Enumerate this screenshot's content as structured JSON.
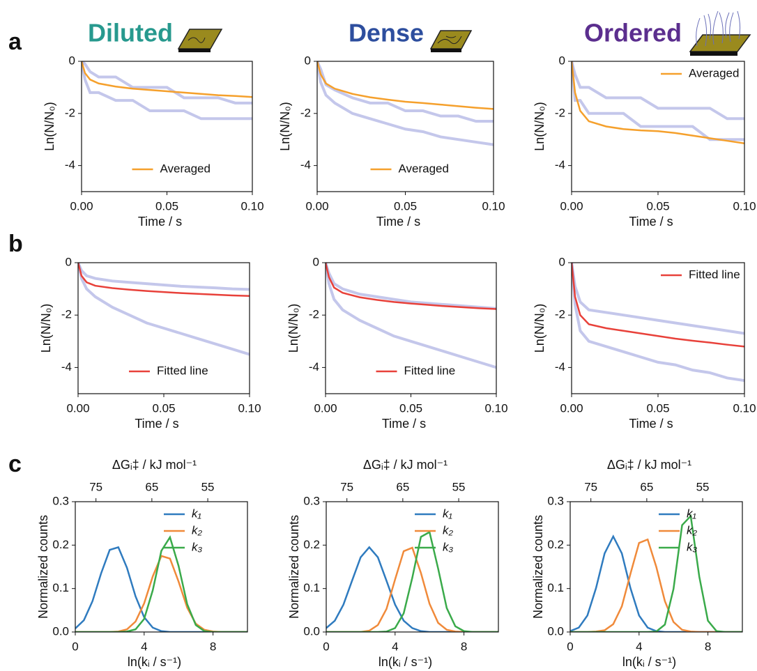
{
  "panel_labels": [
    "a",
    "b",
    "c"
  ],
  "column_titles": [
    "Diluted",
    "Dense",
    "Ordered"
  ],
  "column_title_colors": [
    "#27998e",
    "#2d4e9e",
    "#5b2e8e"
  ],
  "chart_data": [
    {
      "type": "line",
      "xlabel": "Time / s",
      "ylabel": "Ln(N/N₀)",
      "xlim": [
        0,
        0.1
      ],
      "ylim": [
        -5,
        0
      ],
      "xticks": [
        {
          "value": 0,
          "label": "0.00"
        },
        {
          "value": 0.05,
          "label": "0.05"
        },
        {
          "value": 0.1,
          "label": "0.10"
        }
      ],
      "yticks": [
        0,
        -2,
        -4
      ],
      "legend": "lower center",
      "x": [
        0,
        0.002,
        0.005,
        0.01,
        0.02,
        0.03,
        0.04,
        0.05,
        0.06,
        0.07,
        0.08,
        0.09,
        0.1
      ],
      "series": [
        {
          "color": "rgba(60,70,190,0.3)",
          "values": [
            0,
            -0.1,
            -0.4,
            -0.6,
            -0.6,
            -1.0,
            -1.0,
            -1.0,
            -1.4,
            -1.4,
            -1.4,
            -1.6,
            -1.6
          ]
        },
        {
          "color": "rgba(60,70,190,0.3)",
          "values": [
            0,
            -0.7,
            -1.2,
            -1.2,
            -1.5,
            -1.5,
            -1.9,
            -1.9,
            -1.9,
            -2.2,
            -2.2,
            -2.2,
            -2.2
          ]
        },
        {
          "name": "Averaged",
          "color": "#f5a02c",
          "values": [
            0,
            -0.45,
            -0.7,
            -0.85,
            -0.97,
            -1.05,
            -1.1,
            -1.15,
            -1.2,
            -1.25,
            -1.3,
            -1.33,
            -1.37
          ]
        }
      ]
    },
    {
      "type": "line",
      "xlabel": "Time / s",
      "ylabel": "Ln(N/N₀)",
      "xlim": [
        0,
        0.1
      ],
      "ylim": [
        -5,
        0
      ],
      "xticks": [
        {
          "value": 0,
          "label": "0.00"
        },
        {
          "value": 0.05,
          "label": "0.05"
        },
        {
          "value": 0.1,
          "label": "0.10"
        }
      ],
      "yticks": [
        0,
        -2,
        -4
      ],
      "legend": "lower center",
      "x": [
        0,
        0.002,
        0.005,
        0.01,
        0.02,
        0.03,
        0.04,
        0.05,
        0.06,
        0.07,
        0.08,
        0.09,
        0.1
      ],
      "series": [
        {
          "color": "rgba(60,70,190,0.3)",
          "values": [
            0,
            -0.3,
            -0.9,
            -1.1,
            -1.4,
            -1.6,
            -1.6,
            -1.9,
            -1.9,
            -2.1,
            -2.1,
            -2.3,
            -2.3
          ]
        },
        {
          "color": "rgba(60,70,190,0.3)",
          "values": [
            0,
            -0.8,
            -1.3,
            -1.6,
            -2.0,
            -2.2,
            -2.4,
            -2.6,
            -2.7,
            -2.9,
            -3.0,
            -3.1,
            -3.2
          ]
        },
        {
          "name": "Averaged",
          "color": "#f5a02c",
          "values": [
            0,
            -0.5,
            -0.85,
            -1.05,
            -1.25,
            -1.38,
            -1.47,
            -1.55,
            -1.6,
            -1.66,
            -1.72,
            -1.78,
            -1.83
          ]
        }
      ]
    },
    {
      "type": "line",
      "xlabel": "Time / s",
      "ylabel": "Ln(N/N₀)",
      "xlim": [
        0,
        0.1
      ],
      "ylim": [
        -5,
        0
      ],
      "xticks": [
        {
          "value": 0,
          "label": "0.00"
        },
        {
          "value": 0.05,
          "label": "0.05"
        },
        {
          "value": 0.1,
          "label": "0.10"
        }
      ],
      "yticks": [
        0,
        -2,
        -4
      ],
      "legend": "upper right",
      "x": [
        0,
        0.002,
        0.005,
        0.01,
        0.02,
        0.03,
        0.04,
        0.05,
        0.06,
        0.07,
        0.08,
        0.09,
        0.1
      ],
      "series": [
        {
          "color": "rgba(60,70,190,0.3)",
          "values": [
            0,
            -1.5,
            -1.5,
            -2.0,
            -2.0,
            -2.0,
            -2.5,
            -2.5,
            -2.5,
            -2.5,
            -3.0,
            -3.0,
            -3.0
          ]
        },
        {
          "color": "rgba(60,70,190,0.3)",
          "values": [
            0,
            -0.5,
            -1.0,
            -1.0,
            -1.4,
            -1.4,
            -1.4,
            -1.8,
            -1.8,
            -1.8,
            -1.8,
            -2.2,
            -2.2
          ]
        },
        {
          "name": "Averaged",
          "color": "#f5a02c",
          "values": [
            0,
            -1.2,
            -1.9,
            -2.3,
            -2.5,
            -2.6,
            -2.65,
            -2.68,
            -2.75,
            -2.85,
            -2.95,
            -3.05,
            -3.15
          ]
        }
      ]
    },
    {
      "type": "line",
      "xlabel": "Time / s",
      "ylabel": "Ln(N/N₀)",
      "xlim": [
        0,
        0.1
      ],
      "ylim": [
        -5,
        0
      ],
      "xticks": [
        {
          "value": 0,
          "label": "0.00"
        },
        {
          "value": 0.05,
          "label": "0.05"
        },
        {
          "value": 0.1,
          "label": "0.10"
        }
      ],
      "yticks": [
        0,
        -2,
        -4
      ],
      "legend": "lower center",
      "x": [
        0,
        0.002,
        0.005,
        0.01,
        0.02,
        0.03,
        0.04,
        0.05,
        0.06,
        0.07,
        0.08,
        0.09,
        0.1
      ],
      "series": [
        {
          "color": "rgba(60,70,190,0.3)",
          "values": [
            0,
            -0.3,
            -0.5,
            -0.6,
            -0.7,
            -0.75,
            -0.8,
            -0.85,
            -0.9,
            -0.93,
            -0.96,
            -1.0,
            -1.02
          ]
        },
        {
          "color": "rgba(60,70,190,0.3)",
          "values": [
            0,
            -0.6,
            -1.0,
            -1.3,
            -1.7,
            -2.0,
            -2.3,
            -2.5,
            -2.7,
            -2.9,
            -3.1,
            -3.3,
            -3.5
          ]
        },
        {
          "name": "Fitted line",
          "color": "#e8413a",
          "values": [
            0,
            -0.5,
            -0.75,
            -0.88,
            -0.97,
            -1.03,
            -1.08,
            -1.12,
            -1.16,
            -1.19,
            -1.22,
            -1.25,
            -1.27
          ]
        }
      ]
    },
    {
      "type": "line",
      "xlabel": "Time / s",
      "ylabel": "Ln(N/N₀)",
      "xlim": [
        0,
        0.1
      ],
      "ylim": [
        -5,
        0
      ],
      "xticks": [
        {
          "value": 0,
          "label": "0.00"
        },
        {
          "value": 0.05,
          "label": "0.05"
        },
        {
          "value": 0.1,
          "label": "0.10"
        }
      ],
      "yticks": [
        0,
        -2,
        -4
      ],
      "legend": "lower center",
      "x": [
        0,
        0.002,
        0.005,
        0.01,
        0.02,
        0.03,
        0.04,
        0.05,
        0.06,
        0.07,
        0.08,
        0.09,
        0.1
      ],
      "series": [
        {
          "color": "rgba(60,70,190,0.3)",
          "values": [
            0,
            -0.4,
            -0.8,
            -1.0,
            -1.2,
            -1.3,
            -1.4,
            -1.5,
            -1.55,
            -1.6,
            -1.65,
            -1.7,
            -1.75
          ]
        },
        {
          "color": "rgba(60,70,190,0.3)",
          "values": [
            0,
            -0.8,
            -1.4,
            -1.8,
            -2.2,
            -2.5,
            -2.8,
            -3.0,
            -3.2,
            -3.4,
            -3.6,
            -3.8,
            -4.0
          ]
        },
        {
          "name": "Fitted line",
          "color": "#e8413a",
          "values": [
            0,
            -0.55,
            -0.95,
            -1.15,
            -1.32,
            -1.42,
            -1.5,
            -1.56,
            -1.61,
            -1.66,
            -1.7,
            -1.74,
            -1.77
          ]
        }
      ]
    },
    {
      "type": "line",
      "xlabel": "Time / s",
      "ylabel": "Ln(N/N₀)",
      "xlim": [
        0,
        0.1
      ],
      "ylim": [
        -5,
        0
      ],
      "xticks": [
        {
          "value": 0,
          "label": "0.00"
        },
        {
          "value": 0.05,
          "label": "0.05"
        },
        {
          "value": 0.1,
          "label": "0.10"
        }
      ],
      "yticks": [
        0,
        -2,
        -4
      ],
      "legend": "upper right",
      "x": [
        0,
        0.002,
        0.005,
        0.01,
        0.02,
        0.03,
        0.04,
        0.05,
        0.06,
        0.07,
        0.08,
        0.09,
        0.1
      ],
      "series": [
        {
          "color": "rgba(60,70,190,0.3)",
          "values": [
            0,
            -0.9,
            -1.5,
            -1.8,
            -1.9,
            -2.0,
            -2.1,
            -2.2,
            -2.3,
            -2.4,
            -2.5,
            -2.6,
            -2.7
          ]
        },
        {
          "color": "rgba(60,70,190,0.3)",
          "values": [
            0,
            -1.6,
            -2.6,
            -3.0,
            -3.2,
            -3.4,
            -3.6,
            -3.8,
            -3.9,
            -4.1,
            -4.2,
            -4.4,
            -4.5
          ]
        },
        {
          "name": "Fitted line",
          "color": "#e8413a",
          "values": [
            0,
            -1.3,
            -2.0,
            -2.35,
            -2.5,
            -2.6,
            -2.7,
            -2.8,
            -2.9,
            -2.98,
            -3.05,
            -3.13,
            -3.2
          ]
        }
      ]
    },
    {
      "type": "line",
      "xlabel": "ln(kᵢ / s⁻¹)",
      "ylabel": "Normalized counts",
      "x2label": "ΔGᵢ‡ / kJ mol⁻¹",
      "xlim": [
        0,
        10
      ],
      "ylim": [
        0,
        0.3
      ],
      "x2lim": [
        78.7,
        47.9
      ],
      "xticks": [
        0,
        4,
        8
      ],
      "x2ticks": [
        75,
        65,
        55
      ],
      "yticks": [
        {
          "value": 0,
          "label": "0.0"
        },
        0.1,
        0.2,
        0.3
      ],
      "legend": "upper right",
      "x": [
        0,
        0.5,
        1,
        1.5,
        2,
        2.5,
        3,
        3.5,
        4,
        4.5,
        5,
        5.5,
        6,
        6.5,
        7,
        7.5,
        8,
        8.5,
        9,
        9.5,
        10
      ],
      "series": [
        {
          "name": "k₁",
          "color": "#2f7bbf",
          "values": [
            0.008,
            0.027,
            0.071,
            0.135,
            0.189,
            0.195,
            0.148,
            0.082,
            0.034,
            0.01,
            0.002,
            0,
            0,
            0,
            0,
            0,
            0,
            0,
            0,
            0,
            0
          ]
        },
        {
          "name": "k₂",
          "color": "#f08a3a",
          "values": [
            0,
            0,
            0,
            0,
            0,
            0.001,
            0.006,
            0.024,
            0.066,
            0.128,
            0.175,
            0.169,
            0.116,
            0.056,
            0.019,
            0.005,
            0.001,
            0,
            0,
            0,
            0
          ]
        },
        {
          "name": "k₃",
          "color": "#3aaa4a",
          "values": [
            0,
            0,
            0,
            0,
            0,
            0,
            0.001,
            0.006,
            0.03,
            0.096,
            0.187,
            0.218,
            0.152,
            0.064,
            0.016,
            0.002,
            0,
            0,
            0,
            0,
            0
          ]
        }
      ]
    },
    {
      "type": "line",
      "xlabel": "ln(kᵢ / s⁻¹)",
      "ylabel": "Normalized counts",
      "x2label": "ΔGᵢ‡ / kJ mol⁻¹",
      "xlim": [
        0,
        10
      ],
      "ylim": [
        0,
        0.3
      ],
      "x2lim": [
        78.7,
        47.9
      ],
      "xticks": [
        0,
        4,
        8
      ],
      "x2ticks": [
        75,
        65,
        55
      ],
      "yticks": [
        {
          "value": 0,
          "label": "0.0"
        },
        0.1,
        0.2,
        0.3
      ],
      "legend": "upper right",
      "x": [
        0,
        0.5,
        1,
        1.5,
        2,
        2.5,
        3,
        3.5,
        4,
        4.5,
        5,
        5.5,
        6,
        6.5,
        7,
        7.5,
        8,
        8.5,
        9,
        9.5,
        10
      ],
      "series": [
        {
          "name": "k₁",
          "color": "#2f7bbf",
          "values": [
            0.009,
            0.026,
            0.063,
            0.118,
            0.172,
            0.195,
            0.172,
            0.118,
            0.063,
            0.026,
            0.009,
            0.002,
            0,
            0,
            0,
            0,
            0,
            0,
            0,
            0,
            0
          ]
        },
        {
          "name": "k₂",
          "color": "#f08a3a",
          "values": [
            0,
            0,
            0,
            0,
            0,
            0.003,
            0.016,
            0.053,
            0.121,
            0.186,
            0.194,
            0.136,
            0.065,
            0.021,
            0.005,
            0.001,
            0,
            0,
            0,
            0,
            0
          ]
        },
        {
          "name": "k₃",
          "color": "#3aaa4a",
          "values": [
            0,
            0,
            0,
            0,
            0,
            0,
            0,
            0.001,
            0.009,
            0.043,
            0.125,
            0.219,
            0.23,
            0.146,
            0.055,
            0.013,
            0.002,
            0,
            0,
            0,
            0
          ]
        }
      ]
    },
    {
      "type": "line",
      "xlabel": "ln(kᵢ / s⁻¹)",
      "ylabel": "Normalized counts",
      "x2label": "ΔGᵢ‡ / kJ mol⁻¹",
      "xlim": [
        0,
        10
      ],
      "ylim": [
        0,
        0.3
      ],
      "x2lim": [
        78.7,
        47.9
      ],
      "xticks": [
        0,
        4,
        8
      ],
      "x2ticks": [
        75,
        65,
        55
      ],
      "yticks": [
        {
          "value": 0,
          "label": "0.0"
        },
        0.1,
        0.2,
        0.3
      ],
      "legend": "upper right",
      "x": [
        0,
        0.5,
        1,
        1.5,
        2,
        2.5,
        3,
        3.5,
        4,
        4.5,
        5,
        5.5,
        6,
        6.5,
        7,
        7.5,
        8,
        8.5,
        9,
        9.5,
        10
      ],
      "series": [
        {
          "name": "k₁",
          "color": "#2f7bbf",
          "values": [
            0.002,
            0.01,
            0.038,
            0.101,
            0.181,
            0.22,
            0.181,
            0.101,
            0.038,
            0.01,
            0.002,
            0,
            0,
            0,
            0,
            0,
            0,
            0,
            0,
            0,
            0
          ]
        },
        {
          "name": "k₂",
          "color": "#f08a3a",
          "values": [
            0,
            0,
            0,
            0.001,
            0.004,
            0.018,
            0.059,
            0.134,
            0.205,
            0.213,
            0.15,
            0.071,
            0.023,
            0.005,
            0.001,
            0,
            0,
            0,
            0,
            0,
            0
          ]
        },
        {
          "name": "k₃",
          "color": "#3aaa4a",
          "values": [
            0,
            0,
            0,
            0,
            0,
            0,
            0,
            0,
            0,
            0,
            0.001,
            0.017,
            0.099,
            0.246,
            0.267,
            0.127,
            0.026,
            0.002,
            0,
            0,
            0
          ]
        }
      ]
    }
  ]
}
